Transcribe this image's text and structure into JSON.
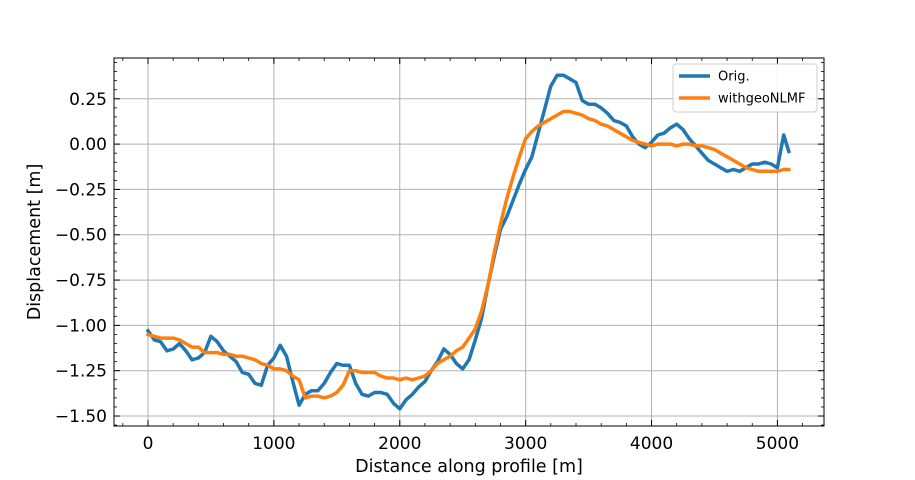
{
  "chart_data": {
    "type": "line",
    "title": "",
    "xlabel": "Distance along profile [m]",
    "ylabel": "Displacement [m]",
    "xlim": [
      -270,
      5370
    ],
    "ylim": [
      -1.555,
      0.475
    ],
    "xticks": [
      0,
      1000,
      2000,
      3000,
      4000,
      5000
    ],
    "xtick_labels": [
      "0",
      "1000",
      "2000",
      "3000",
      "4000",
      "5000"
    ],
    "yticks": [
      -1.5,
      -1.25,
      -1.0,
      -0.75,
      -0.5,
      -0.25,
      0.0,
      0.25
    ],
    "ytick_labels": [
      "−1.50",
      "−1.25",
      "−1.00",
      "−0.75",
      "−0.50",
      "−0.25",
      "0.00",
      "0.25"
    ],
    "grid": true,
    "legend_position": "top-right",
    "series": [
      {
        "name": "Orig.",
        "color": "#1f77b4",
        "x": [
          0,
          50,
          100,
          150,
          200,
          250,
          300,
          350,
          400,
          450,
          500,
          550,
          600,
          650,
          700,
          750,
          800,
          850,
          900,
          950,
          1000,
          1050,
          1100,
          1150,
          1200,
          1250,
          1300,
          1350,
          1400,
          1450,
          1500,
          1550,
          1600,
          1650,
          1700,
          1750,
          1800,
          1850,
          1900,
          1950,
          2000,
          2050,
          2100,
          2150,
          2200,
          2250,
          2300,
          2350,
          2400,
          2450,
          2500,
          2550,
          2600,
          2650,
          2700,
          2750,
          2800,
          2850,
          2900,
          2950,
          3000,
          3050,
          3100,
          3150,
          3200,
          3250,
          3300,
          3350,
          3400,
          3450,
          3500,
          3550,
          3600,
          3650,
          3700,
          3750,
          3800,
          3850,
          3900,
          3950,
          4000,
          4050,
          4100,
          4150,
          4200,
          4250,
          4300,
          4350,
          4400,
          4450,
          4500,
          4550,
          4600,
          4650,
          4700,
          4750,
          4800,
          4850,
          4900,
          4950,
          5000,
          5050,
          5090
        ],
        "values": [
          -1.03,
          -1.08,
          -1.09,
          -1.14,
          -1.13,
          -1.1,
          -1.14,
          -1.19,
          -1.18,
          -1.15,
          -1.06,
          -1.09,
          -1.14,
          -1.17,
          -1.2,
          -1.26,
          -1.27,
          -1.32,
          -1.33,
          -1.22,
          -1.18,
          -1.11,
          -1.17,
          -1.31,
          -1.44,
          -1.38,
          -1.36,
          -1.36,
          -1.32,
          -1.26,
          -1.21,
          -1.22,
          -1.22,
          -1.32,
          -1.38,
          -1.39,
          -1.37,
          -1.37,
          -1.38,
          -1.43,
          -1.46,
          -1.41,
          -1.38,
          -1.34,
          -1.31,
          -1.25,
          -1.2,
          -1.13,
          -1.16,
          -1.21,
          -1.24,
          -1.19,
          -1.08,
          -0.96,
          -0.78,
          -0.62,
          -0.47,
          -0.4,
          -0.31,
          -0.22,
          -0.14,
          -0.07,
          0.06,
          0.19,
          0.32,
          0.38,
          0.38,
          0.36,
          0.34,
          0.24,
          0.22,
          0.22,
          0.2,
          0.17,
          0.13,
          0.12,
          0.1,
          0.04,
          0.0,
          -0.02,
          0.01,
          0.05,
          0.06,
          0.09,
          0.11,
          0.08,
          0.03,
          -0.01,
          -0.05,
          -0.09,
          -0.11,
          -0.13,
          -0.15,
          -0.14,
          -0.15,
          -0.13,
          -0.11,
          -0.11,
          -0.1,
          -0.11,
          -0.13,
          0.05,
          -0.04
        ]
      },
      {
        "name": "withgeoNLMF",
        "color": "#ff7f0e",
        "x": [
          0,
          50,
          100,
          150,
          200,
          250,
          300,
          350,
          400,
          450,
          500,
          550,
          600,
          650,
          700,
          750,
          800,
          850,
          900,
          950,
          1000,
          1050,
          1100,
          1150,
          1200,
          1250,
          1300,
          1350,
          1400,
          1450,
          1500,
          1550,
          1600,
          1650,
          1700,
          1750,
          1800,
          1850,
          1900,
          1950,
          2000,
          2050,
          2100,
          2150,
          2200,
          2250,
          2300,
          2350,
          2400,
          2450,
          2500,
          2550,
          2600,
          2650,
          2700,
          2750,
          2800,
          2850,
          2900,
          2950,
          3000,
          3050,
          3100,
          3150,
          3200,
          3250,
          3300,
          3350,
          3400,
          3450,
          3500,
          3550,
          3600,
          3650,
          3700,
          3750,
          3800,
          3850,
          3900,
          3950,
          4000,
          4050,
          4100,
          4150,
          4200,
          4250,
          4300,
          4350,
          4400,
          4450,
          4500,
          4550,
          4600,
          4650,
          4700,
          4750,
          4800,
          4850,
          4900,
          4950,
          5000,
          5050,
          5090
        ],
        "values": [
          -1.05,
          -1.06,
          -1.07,
          -1.07,
          -1.07,
          -1.08,
          -1.1,
          -1.12,
          -1.12,
          -1.15,
          -1.15,
          -1.15,
          -1.16,
          -1.16,
          -1.17,
          -1.17,
          -1.18,
          -1.19,
          -1.21,
          -1.22,
          -1.24,
          -1.24,
          -1.25,
          -1.28,
          -1.3,
          -1.4,
          -1.39,
          -1.39,
          -1.4,
          -1.39,
          -1.37,
          -1.33,
          -1.25,
          -1.25,
          -1.26,
          -1.26,
          -1.26,
          -1.28,
          -1.29,
          -1.29,
          -1.3,
          -1.29,
          -1.3,
          -1.29,
          -1.28,
          -1.25,
          -1.21,
          -1.19,
          -1.17,
          -1.14,
          -1.12,
          -1.07,
          -1.02,
          -0.92,
          -0.78,
          -0.6,
          -0.44,
          -0.3,
          -0.18,
          -0.07,
          0.03,
          0.07,
          0.1,
          0.12,
          0.14,
          0.16,
          0.18,
          0.18,
          0.17,
          0.16,
          0.14,
          0.13,
          0.11,
          0.1,
          0.08,
          0.06,
          0.04,
          0.02,
          0.01,
          0.0,
          -0.01,
          0.0,
          0.0,
          0.0,
          -0.01,
          0.0,
          0.0,
          -0.01,
          -0.01,
          -0.02,
          -0.03,
          -0.05,
          -0.07,
          -0.09,
          -0.11,
          -0.13,
          -0.14,
          -0.15,
          -0.15,
          -0.15,
          -0.15,
          -0.14,
          -0.14
        ]
      }
    ]
  }
}
